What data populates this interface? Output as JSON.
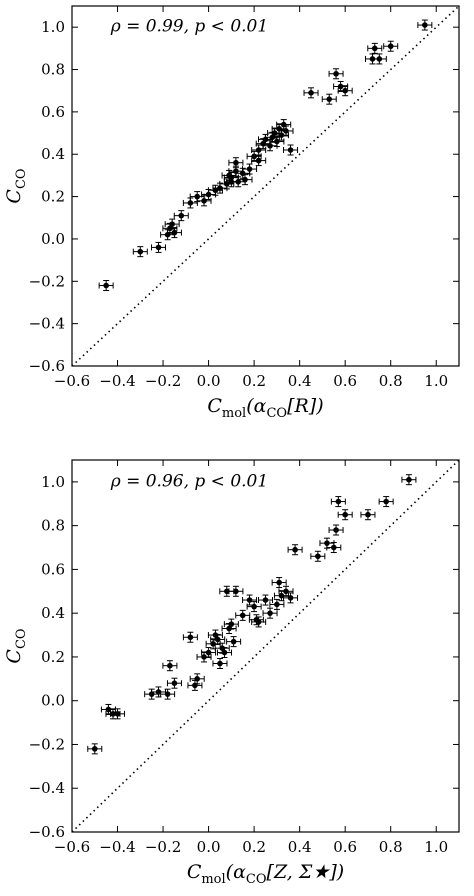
{
  "chart_data": [
    {
      "type": "scatter",
      "annotation": "ρ = 0.99, p < 0.01",
      "xlabel": "Cmol(αCO[R])",
      "ylabel": "CCO",
      "xlim": [
        -0.6,
        1.1
      ],
      "ylim": [
        -0.6,
        1.1
      ],
      "xticks": [
        "−0.6",
        "−0.4",
        "−0.2",
        "0.0",
        "0.2",
        "0.4",
        "0.6",
        "0.8",
        "1.0"
      ],
      "yticks": [
        "−0.6",
        "−0.4",
        "−0.2",
        "0.0",
        "0.2",
        "0.4",
        "0.6",
        "0.8",
        "1.0"
      ],
      "one_to_one_line": true,
      "grid": false,
      "points": [
        [
          -0.45,
          -0.22
        ],
        [
          -0.3,
          -0.06
        ],
        [
          -0.22,
          -0.04
        ],
        [
          -0.18,
          0.02
        ],
        [
          -0.17,
          0.05
        ],
        [
          -0.16,
          0.07
        ],
        [
          -0.15,
          0.03
        ],
        [
          -0.12,
          0.11
        ],
        [
          -0.08,
          0.17
        ],
        [
          -0.05,
          0.2
        ],
        [
          -0.02,
          0.18
        ],
        [
          0.0,
          0.21
        ],
        [
          0.03,
          0.23
        ],
        [
          0.05,
          0.24
        ],
        [
          0.08,
          0.26
        ],
        [
          0.1,
          0.29
        ],
        [
          0.12,
          0.32
        ],
        [
          0.12,
          0.36
        ],
        [
          0.13,
          0.27
        ],
        [
          0.15,
          0.31
        ],
        [
          0.16,
          0.28
        ],
        [
          0.18,
          0.33
        ],
        [
          0.2,
          0.39
        ],
        [
          0.22,
          0.37
        ],
        [
          0.22,
          0.42
        ],
        [
          0.24,
          0.45
        ],
        [
          0.25,
          0.47
        ],
        [
          0.27,
          0.44
        ],
        [
          0.28,
          0.48
        ],
        [
          0.29,
          0.5
        ],
        [
          0.3,
          0.46
        ],
        [
          0.31,
          0.52
        ],
        [
          0.32,
          0.49
        ],
        [
          0.33,
          0.54
        ],
        [
          0.34,
          0.51
        ],
        [
          0.36,
          0.42
        ],
        [
          0.1,
          0.27
        ],
        [
          0.09,
          0.3
        ],
        [
          0.45,
          0.69
        ],
        [
          0.53,
          0.66
        ],
        [
          0.56,
          0.78
        ],
        [
          0.58,
          0.72
        ],
        [
          0.6,
          0.7
        ],
        [
          0.72,
          0.85
        ],
        [
          0.73,
          0.9
        ],
        [
          0.75,
          0.85
        ],
        [
          0.8,
          0.91
        ],
        [
          0.95,
          1.01
        ]
      ]
    },
    {
      "type": "scatter",
      "annotation": "ρ = 0.96, p < 0.01",
      "xlabel": "Cmol(αCO[Z, Σ★])",
      "ylabel": "CCO",
      "xlim": [
        -0.6,
        1.1
      ],
      "ylim": [
        -0.6,
        1.1
      ],
      "xticks": [
        "−0.6",
        "−0.4",
        "−0.2",
        "0.0",
        "0.2",
        "0.4",
        "0.6",
        "0.8",
        "1.0"
      ],
      "yticks": [
        "−0.6",
        "−0.4",
        "−0.2",
        "0.0",
        "0.2",
        "0.4",
        "0.6",
        "0.8",
        "1.0"
      ],
      "one_to_one_line": true,
      "grid": false,
      "points": [
        [
          -0.5,
          -0.22
        ],
        [
          -0.44,
          -0.04
        ],
        [
          -0.42,
          -0.06
        ],
        [
          -0.4,
          -0.06
        ],
        [
          -0.25,
          0.03
        ],
        [
          -0.22,
          0.04
        ],
        [
          -0.18,
          0.03
        ],
        [
          -0.17,
          0.16
        ],
        [
          -0.15,
          0.08
        ],
        [
          -0.08,
          0.29
        ],
        [
          -0.06,
          0.07
        ],
        [
          -0.05,
          0.1
        ],
        [
          -0.02,
          0.2
        ],
        [
          0.0,
          0.22
        ],
        [
          0.02,
          0.26
        ],
        [
          0.03,
          0.3
        ],
        [
          0.04,
          0.28
        ],
        [
          0.05,
          0.17
        ],
        [
          0.06,
          0.24
        ],
        [
          0.07,
          0.22
        ],
        [
          0.08,
          0.5
        ],
        [
          0.09,
          0.33
        ],
        [
          0.1,
          0.35
        ],
        [
          0.11,
          0.27
        ],
        [
          0.12,
          0.5
        ],
        [
          0.15,
          0.39
        ],
        [
          0.18,
          0.46
        ],
        [
          0.2,
          0.43
        ],
        [
          0.21,
          0.37
        ],
        [
          0.22,
          0.36
        ],
        [
          0.25,
          0.46
        ],
        [
          0.27,
          0.4
        ],
        [
          0.3,
          0.44
        ],
        [
          0.31,
          0.54
        ],
        [
          0.32,
          0.48
        ],
        [
          0.34,
          0.5
        ],
        [
          0.36,
          0.47
        ],
        [
          0.38,
          0.69
        ],
        [
          0.48,
          0.66
        ],
        [
          0.52,
          0.72
        ],
        [
          0.55,
          0.7
        ],
        [
          0.56,
          0.78
        ],
        [
          0.57,
          0.91
        ],
        [
          0.6,
          0.85
        ],
        [
          0.7,
          0.85
        ],
        [
          0.78,
          0.91
        ],
        [
          0.88,
          1.01
        ]
      ]
    }
  ]
}
